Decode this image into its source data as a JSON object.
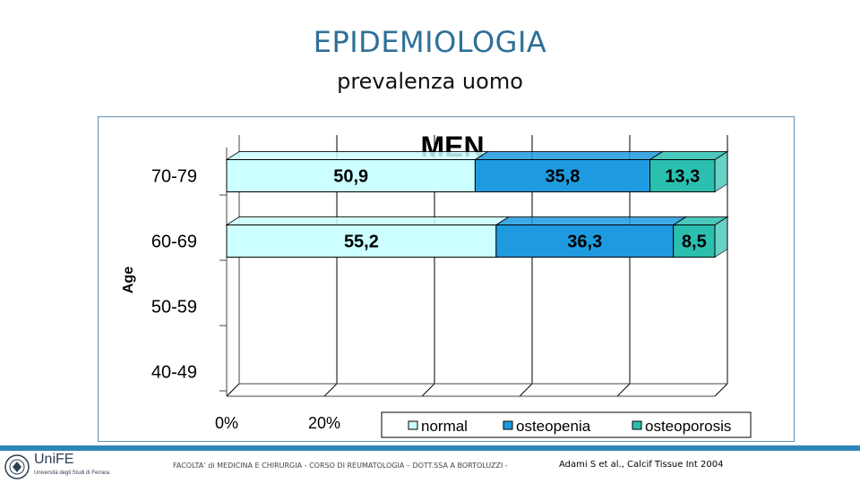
{
  "slide": {
    "title": "EPIDEMIOLOGIA",
    "subtitle": "prevalenza uomo",
    "footer_text": "FACOLTA’ di MEDICINA E CHIRURGIA - CORSO DI REUMATOLOGIA – DOTT.SSA A BORTOLUZZI -",
    "footer_ref": "Adami S et al., Calcif Tissue Int 2004",
    "logo_text": "UniFE",
    "logo_sub": "Università degli Studi di Ferrara"
  },
  "colors": {
    "title": "#2e6f98",
    "normal": "#ccffff",
    "osteopenia": "#1e9be0",
    "osteoporosis": "#2bbfb0",
    "footer_bar": "#2e86b8"
  },
  "chart_data": {
    "type": "bar",
    "orientation": "horizontal",
    "stacked": true,
    "title": "MEN",
    "ylabel": "Age",
    "categories": [
      "70-79",
      "60-69",
      "50-59",
      "40-49"
    ],
    "series": [
      {
        "name": "normal",
        "values": [
          50.9,
          55.2,
          null,
          null
        ],
        "labels": [
          "50,9",
          "55,2",
          "",
          ""
        ]
      },
      {
        "name": "osteopenia",
        "values": [
          35.8,
          36.3,
          null,
          null
        ],
        "labels": [
          "35,8",
          "36,3",
          "",
          ""
        ]
      },
      {
        "name": "osteoporosis",
        "values": [
          13.3,
          8.5,
          null,
          null
        ],
        "labels": [
          "13,3",
          "8,5",
          "",
          ""
        ]
      }
    ],
    "x_ticks": [
      "0%",
      "20%"
    ],
    "xlim": [
      0,
      100
    ],
    "grid": true,
    "legend_position": "bottom"
  }
}
